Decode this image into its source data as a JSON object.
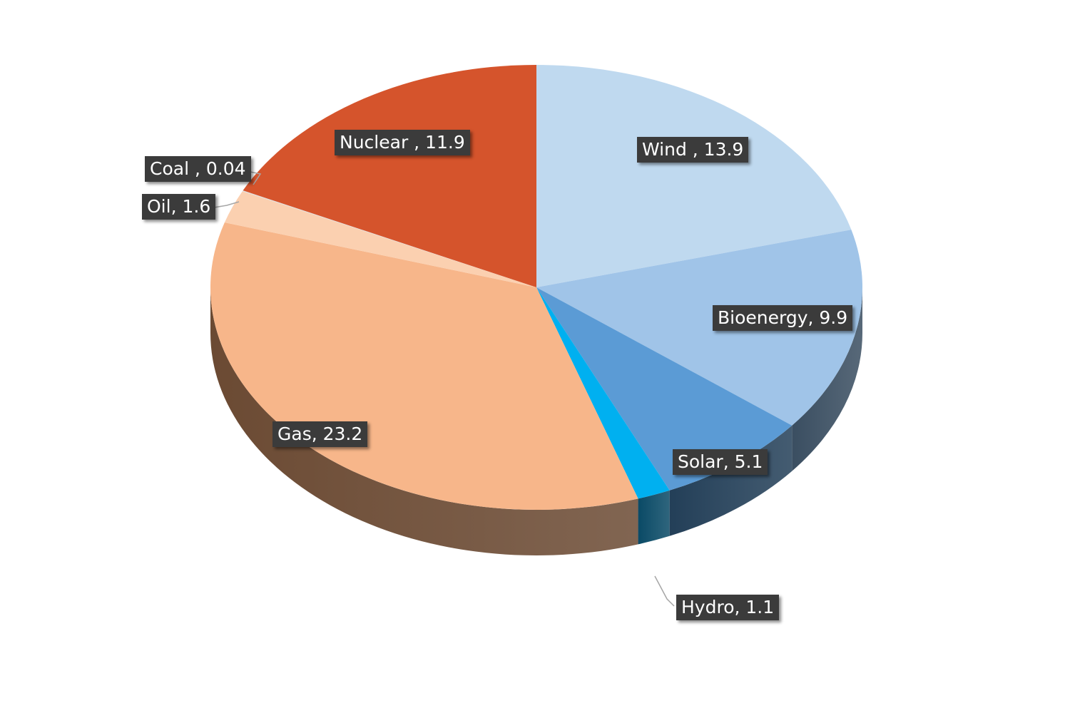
{
  "chart_data": {
    "type": "pie",
    "title": "",
    "slices": [
      {
        "name": "Wind",
        "value": 13.9,
        "label": "Wind , 13.9",
        "color": "#bfd9ef",
        "side_color": "#53697c"
      },
      {
        "name": "Bioenergy",
        "value": 9.9,
        "label": "Bioenergy, 9.9",
        "color": "#a0c4e8",
        "side_color": "#3a4e61"
      },
      {
        "name": "Solar",
        "value": 5.1,
        "label": "Solar, 5.1",
        "color": "#5b9bd5",
        "side_color": "#233f58"
      },
      {
        "name": "Hydro",
        "value": 1.1,
        "label": "Hydro, 1.1",
        "color": "#00b0f0",
        "side_color": "#0a4a66"
      },
      {
        "name": "Gas",
        "value": 23.2,
        "label": "Gas, 23.2",
        "color": "#f7b68a",
        "side_color": "#6b4a33"
      },
      {
        "name": "Oil",
        "value": 1.6,
        "label": "Oil, 1.6",
        "color": "#fbd0b0",
        "side_color": "#9a7c66"
      },
      {
        "name": "Coal",
        "value": 0.04,
        "label": "Coal , 0.04",
        "color": "#e0e0e0",
        "side_color": "#8a8a8a"
      },
      {
        "name": "Nuclear",
        "value": 11.9,
        "label": "Nuclear , 11.9",
        "color": "#d5542c",
        "side_color": "#6e2a14"
      }
    ],
    "start": "12 o'clock",
    "direction": "clockwise",
    "style": "3D pie, tilted",
    "legend": "none",
    "data_labels": "dark boxes with name and value"
  }
}
